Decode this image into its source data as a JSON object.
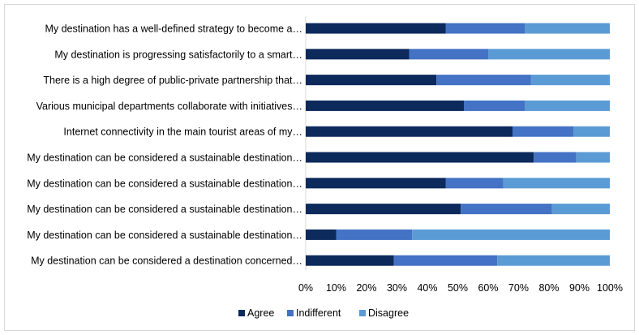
{
  "chart_data": {
    "type": "bar",
    "orientation": "horizontal",
    "stacked": "percent",
    "categories": [
      "My destination has a well-defined strategy to become a…",
      "My destination is progressing satisfactorily to a smart…",
      "There is a high degree of public-private partnership that…",
      "Various municipal departments collaborate with initiatives…",
      "Internet connectivity in the main tourist areas of my…",
      "My destination can be considered a sustainable destination…",
      "My destination can be considered a sustainable destination…",
      "My destination can be considered a sustainable destination…",
      "My destination can be considered a sustainable destination…",
      "My destination can be considered a destination concerned…"
    ],
    "series": [
      {
        "name": "Agree",
        "color": "#0d2a5c",
        "values": [
          46,
          34,
          43,
          52,
          68,
          75,
          46,
          51,
          10,
          29
        ]
      },
      {
        "name": "Indifferent",
        "color": "#4472c4",
        "values": [
          26,
          26,
          31,
          20,
          20,
          14,
          19,
          30,
          25,
          34
        ]
      },
      {
        "name": "Disagree",
        "color": "#5b9bd5",
        "values": [
          28,
          40,
          26,
          28,
          12,
          11,
          35,
          19,
          65,
          37
        ]
      }
    ],
    "xlim": [
      0,
      100
    ],
    "xticks": [
      "0%",
      "10%",
      "20%",
      "30%",
      "40%",
      "50%",
      "60%",
      "70%",
      "80%",
      "90%",
      "100%"
    ],
    "grid": false,
    "legend_position": "bottom"
  }
}
